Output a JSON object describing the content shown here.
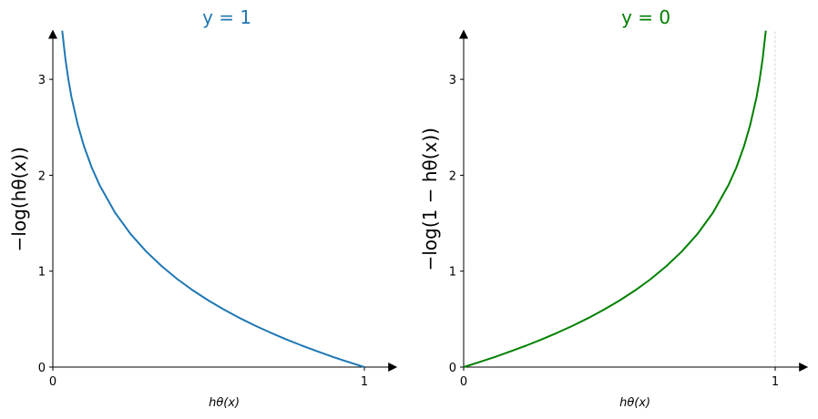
{
  "chart_data": [
    {
      "type": "line",
      "title": "y = 1",
      "title_color": "#1f77b4",
      "xlabel": "hθ(x)",
      "ylabel": "−log(hθ(x))",
      "line_color": "#1f77b4",
      "xlim": [
        0,
        1.1
      ],
      "ylim": [
        0,
        3.5
      ],
      "xticks": [
        "0",
        "1"
      ],
      "yticks": [
        "0",
        "1",
        "2",
        "3"
      ],
      "grid": false,
      "x": [
        0.03,
        0.04,
        0.05,
        0.06,
        0.08,
        0.1,
        0.125,
        0.15,
        0.2,
        0.25,
        0.3,
        0.35,
        0.4,
        0.45,
        0.5,
        0.55,
        0.6,
        0.65,
        0.7,
        0.75,
        0.8,
        0.85,
        0.9,
        0.95,
        1.0
      ],
      "y": [
        3.507,
        3.219,
        2.996,
        2.813,
        2.526,
        2.303,
        2.079,
        1.897,
        1.609,
        1.386,
        1.204,
        1.05,
        0.916,
        0.799,
        0.693,
        0.598,
        0.511,
        0.431,
        0.357,
        0.288,
        0.223,
        0.163,
        0.105,
        0.051,
        0
      ]
    },
    {
      "type": "line",
      "title": "y = 0",
      "title_color": "#008000",
      "xlabel": "hθ(x)",
      "ylabel": "−log(1 − hθ(x))",
      "line_color": "#008000",
      "xlim": [
        0,
        1.1
      ],
      "ylim": [
        0,
        3.5
      ],
      "xticks": [
        "0",
        "1"
      ],
      "yticks": [
        "0",
        "1",
        "2",
        "3"
      ],
      "grid": false,
      "vline_at": 1,
      "x": [
        0,
        0.05,
        0.1,
        0.15,
        0.2,
        0.25,
        0.3,
        0.35,
        0.4,
        0.45,
        0.5,
        0.55,
        0.6,
        0.65,
        0.7,
        0.75,
        0.8,
        0.85,
        0.875,
        0.9,
        0.92,
        0.94,
        0.95,
        0.96,
        0.97
      ],
      "y": [
        0,
        0.051,
        0.105,
        0.163,
        0.223,
        0.288,
        0.357,
        0.431,
        0.511,
        0.598,
        0.693,
        0.799,
        0.916,
        1.05,
        1.204,
        1.386,
        1.609,
        1.897,
        2.079,
        2.303,
        2.526,
        2.813,
        2.996,
        3.219,
        3.507
      ]
    }
  ]
}
